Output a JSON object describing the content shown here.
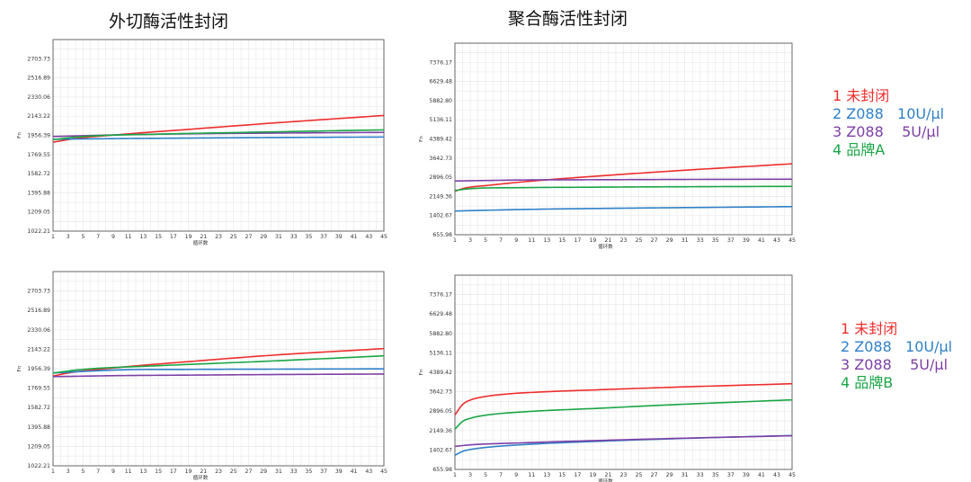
{
  "titles": {
    "left": "外切酶活性封闭",
    "right": "聚合酶活性封闭"
  },
  "legends": [
    {
      "entries": [
        {
          "label": "1 未封闭",
          "color": "#ee2d2d"
        },
        {
          "label": "2 Z088   10U/µl",
          "color": "#2f80c8"
        },
        {
          "label": "3 Z088    5U/µl",
          "color": "#7d3fa6"
        },
        {
          "label": "4 品牌A",
          "color": "#1aa646"
        }
      ]
    },
    {
      "entries": [
        {
          "label": "1 未封闭",
          "color": "#ee2d2d"
        },
        {
          "label": "2 Z088   10U/µl",
          "color": "#2f80c8"
        },
        {
          "label": "3 Z088    5U/µl",
          "color": "#7d3fa6"
        },
        {
          "label": "4 品牌B",
          "color": "#1aa646"
        }
      ]
    }
  ],
  "chart_data": [
    {
      "type": "line",
      "xlabel": "循环数",
      "ylabel": "Fn",
      "xlim": [
        1,
        45
      ],
      "ylim": [
        1022.21,
        2890.57
      ],
      "grid": true,
      "x_ticks": [
        1,
        3,
        5,
        7,
        9,
        11,
        13,
        15,
        17,
        19,
        21,
        23,
        25,
        27,
        29,
        31,
        33,
        35,
        37,
        39,
        41,
        43,
        45
      ],
      "y_ticks": [
        "1022.21",
        "1209.05",
        "1395.88",
        "1582.72",
        "1769.55",
        "1956.39",
        "2143.22",
        "2330.06",
        "2516.89",
        "2703.73"
      ],
      "series": [
        {
          "color": "#ee2d2d",
          "values": [
            [
              1,
              1890
            ],
            [
              4,
              1925
            ],
            [
              10,
              1965
            ],
            [
              20,
              2020
            ],
            [
              30,
              2075
            ],
            [
              45,
              2150
            ]
          ]
        },
        {
          "color": "#2f80c8",
          "values": [
            [
              1,
              1918
            ],
            [
              10,
              1925
            ],
            [
              20,
              1930
            ],
            [
              30,
              1935
            ],
            [
              45,
              1940
            ]
          ]
        },
        {
          "color": "#7d3fa6",
          "values": [
            [
              1,
              1945
            ],
            [
              10,
              1962
            ],
            [
              20,
              1972
            ],
            [
              30,
              1978
            ],
            [
              45,
              1985
            ]
          ]
        },
        {
          "color": "#1aa646",
          "values": [
            [
              1,
              1915
            ],
            [
              5,
              1945
            ],
            [
              15,
              1968
            ],
            [
              30,
              1990
            ],
            [
              45,
              2010
            ]
          ]
        }
      ]
    },
    {
      "type": "line",
      "xlabel": "循环数",
      "ylabel": "Fn",
      "xlim": [
        1,
        45
      ],
      "ylim": [
        655.98,
        8122.86
      ],
      "grid": true,
      "x_ticks": [
        1,
        3,
        5,
        7,
        9,
        11,
        13,
        15,
        17,
        19,
        21,
        23,
        25,
        27,
        29,
        31,
        33,
        35,
        37,
        39,
        41,
        43,
        45
      ],
      "y_ticks": [
        "655.98",
        "1402.67",
        "2149.36",
        "2896.05",
        "3642.73",
        "4389.42",
        "5136.11",
        "5882.80",
        "6629.48",
        "7376.17"
      ],
      "series": [
        {
          "color": "#ee2d2d",
          "values": [
            [
              1,
              2350
            ],
            [
              2,
              2450
            ],
            [
              3,
              2510
            ],
            [
              5,
              2570
            ],
            [
              10,
              2720
            ],
            [
              20,
              2950
            ],
            [
              30,
              3150
            ],
            [
              45,
              3420
            ]
          ]
        },
        {
          "color": "#2f80c8",
          "values": [
            [
              1,
              1580
            ],
            [
              10,
              1640
            ],
            [
              20,
              1680
            ],
            [
              30,
              1710
            ],
            [
              45,
              1750
            ]
          ]
        },
        {
          "color": "#7d3fa6",
          "values": [
            [
              1,
              2750
            ],
            [
              10,
              2790
            ],
            [
              20,
              2800
            ],
            [
              30,
              2810
            ],
            [
              45,
              2820
            ]
          ]
        },
        {
          "color": "#1aa646",
          "values": [
            [
              1,
              2380
            ],
            [
              3,
              2450
            ],
            [
              10,
              2490
            ],
            [
              20,
              2510
            ],
            [
              30,
              2525
            ],
            [
              45,
              2540
            ]
          ]
        }
      ]
    },
    {
      "type": "line",
      "xlabel": "循环数",
      "ylabel": "Fn",
      "xlim": [
        1,
        45
      ],
      "ylim": [
        1022.21,
        2890.57
      ],
      "grid": true,
      "x_ticks": [
        1,
        3,
        5,
        7,
        9,
        11,
        13,
        15,
        17,
        19,
        21,
        23,
        25,
        27,
        29,
        31,
        33,
        35,
        37,
        39,
        41,
        43,
        45
      ],
      "y_ticks": [
        "1022.21",
        "1209.05",
        "1395.88",
        "1582.72",
        "1769.55",
        "1956.39",
        "2143.22",
        "2330.06",
        "2516.89",
        "2703.73"
      ],
      "series": [
        {
          "color": "#ee2d2d",
          "values": [
            [
              1,
              1885
            ],
            [
              3,
              1915
            ],
            [
              10,
              1970
            ],
            [
              20,
              2030
            ],
            [
              30,
              2085
            ],
            [
              45,
              2150
            ]
          ]
        },
        {
          "color": "#2f80c8",
          "values": [
            [
              1,
              1915
            ],
            [
              10,
              1945
            ],
            [
              20,
              1950
            ],
            [
              30,
              1952
            ],
            [
              45,
              1955
            ]
          ]
        },
        {
          "color": "#7d3fa6",
          "values": [
            [
              1,
              1880
            ],
            [
              10,
              1890
            ],
            [
              20,
              1895
            ],
            [
              30,
              1900
            ],
            [
              45,
              1905
            ]
          ]
        },
        {
          "color": "#1aa646",
          "values": [
            [
              1,
              1915
            ],
            [
              5,
              1950
            ],
            [
              15,
              1985
            ],
            [
              30,
              2030
            ],
            [
              45,
              2080
            ]
          ]
        }
      ]
    },
    {
      "type": "line",
      "xlabel": "循环数",
      "ylabel": "Fn",
      "xlim": [
        1,
        45
      ],
      "ylim": [
        655.98,
        8122.86
      ],
      "grid": true,
      "x_ticks": [
        1,
        3,
        5,
        7,
        9,
        11,
        13,
        15,
        17,
        19,
        21,
        23,
        25,
        27,
        29,
        31,
        33,
        35,
        37,
        39,
        41,
        43,
        45
      ],
      "y_ticks": [
        "655.98",
        "1402.67",
        "2149.36",
        "2896.05",
        "3642.73",
        "4389.42",
        "5136.11",
        "5882.80",
        "6629.48",
        "7376.17"
      ],
      "series": [
        {
          "color": "#ee2d2d",
          "values": [
            [
              1,
              2750
            ],
            [
              2,
              3150
            ],
            [
              3,
              3320
            ],
            [
              5,
              3460
            ],
            [
              8,
              3560
            ],
            [
              12,
              3630
            ],
            [
              20,
              3720
            ],
            [
              30,
              3820
            ],
            [
              45,
              3950
            ]
          ]
        },
        {
          "color": "#1aa646",
          "values": [
            [
              1,
              2200
            ],
            [
              2,
              2500
            ],
            [
              3,
              2620
            ],
            [
              5,
              2740
            ],
            [
              10,
              2870
            ],
            [
              20,
              3010
            ],
            [
              30,
              3150
            ],
            [
              45,
              3330
            ]
          ]
        },
        {
          "color": "#2f80c8",
          "values": [
            [
              1,
              1200
            ],
            [
              2,
              1350
            ],
            [
              3,
              1420
            ],
            [
              5,
              1500
            ],
            [
              10,
              1610
            ],
            [
              20,
              1740
            ],
            [
              30,
              1840
            ],
            [
              45,
              1960
            ]
          ]
        },
        {
          "color": "#7d3fa6",
          "values": [
            [
              1,
              1540
            ],
            [
              3,
              1600
            ],
            [
              10,
              1680
            ],
            [
              20,
              1770
            ],
            [
              30,
              1850
            ],
            [
              45,
              1950
            ]
          ]
        }
      ]
    }
  ]
}
